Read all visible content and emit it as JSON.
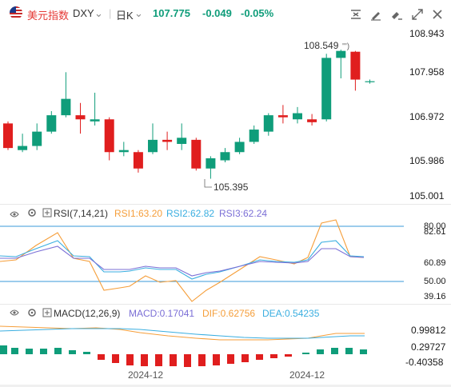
{
  "header": {
    "title": "美元指数",
    "symbol": "DXY",
    "period": "日K",
    "price": "107.775",
    "change": "-0.049",
    "change_pct": "-0.05%"
  },
  "colors": {
    "up": "#0f9d7a",
    "down": "#e01e1e",
    "rsi1": "#f59e3a",
    "rsi2": "#3aaee0",
    "rsi3": "#7b6fd6",
    "dif": "#f59e3a",
    "dea": "#3aaee0",
    "ref_line": "#3a9ad9"
  },
  "price_axis": [
    "108.943",
    "107.958",
    "106.972",
    "105.986",
    "105.001"
  ],
  "annotations": {
    "high": "108.549",
    "low": "105.395"
  },
  "rsi": {
    "title": "RSI(7,14,21)",
    "rsi1": "RSI1:63.20",
    "rsi2": "RSI2:62.82",
    "rsi3": "RSI3:62.24",
    "axis": [
      "80.00",
      "82.61",
      "60.89",
      "50.00",
      "39.16"
    ]
  },
  "macd": {
    "title": "MACD(12,26,9)",
    "macd": "MACD:0.17041",
    "dif": "DIF:0.62756",
    "dea": "DEA:0.54235",
    "axis": [
      "0.99812",
      "0.29727",
      "-0.40358"
    ]
  },
  "x_labels": [
    "2024-12",
    "2024-12"
  ],
  "icons": [
    "expand-icon",
    "draw-icon",
    "edit-icon",
    "fullscreen-icon",
    "close-icon",
    "eye-icon",
    "settings-icon",
    "add-indicator-icon"
  ],
  "chart_data": {
    "type": "candlestick",
    "ylim": [
      105.001,
      108.943
    ],
    "candles": [
      {
        "o": 106.75,
        "c": 106.15,
        "h": 106.8,
        "l": 106.1
      },
      {
        "o": 106.1,
        "c": 106.2,
        "h": 106.5,
        "l": 106.05
      },
      {
        "o": 106.2,
        "c": 106.55,
        "h": 106.75,
        "l": 106.1
      },
      {
        "o": 106.55,
        "c": 106.95,
        "h": 107.05,
        "l": 106.5
      },
      {
        "o": 106.95,
        "c": 107.35,
        "h": 108.0,
        "l": 106.9
      },
      {
        "o": 106.95,
        "c": 106.85,
        "h": 107.25,
        "l": 106.5
      },
      {
        "o": 106.8,
        "c": 106.85,
        "h": 107.5,
        "l": 106.7
      },
      {
        "o": 106.85,
        "c": 106.05,
        "h": 106.9,
        "l": 105.85
      },
      {
        "o": 106.05,
        "c": 106.1,
        "h": 106.3,
        "l": 105.95
      },
      {
        "o": 106.05,
        "c": 105.65,
        "h": 106.1,
        "l": 105.55
      },
      {
        "o": 106.05,
        "c": 106.35,
        "h": 106.75,
        "l": 106.0
      },
      {
        "o": 106.35,
        "c": 106.3,
        "h": 106.55,
        "l": 106.1
      },
      {
        "o": 106.25,
        "c": 106.4,
        "h": 106.75,
        "l": 106.1
      },
      {
        "o": 106.35,
        "c": 105.65,
        "h": 106.4,
        "l": 105.6
      },
      {
        "o": 105.65,
        "c": 105.9,
        "h": 105.95,
        "l": 105.4
      },
      {
        "o": 105.85,
        "c": 106.05,
        "h": 106.15,
        "l": 105.8
      },
      {
        "o": 106.05,
        "c": 106.3,
        "h": 106.4,
        "l": 106.0
      },
      {
        "o": 106.3,
        "c": 106.6,
        "h": 106.7,
        "l": 106.25
      },
      {
        "o": 106.55,
        "c": 106.95,
        "h": 107.0,
        "l": 106.45
      },
      {
        "o": 106.95,
        "c": 106.9,
        "h": 107.2,
        "l": 106.75
      },
      {
        "o": 106.85,
        "c": 107.0,
        "h": 107.15,
        "l": 106.75
      },
      {
        "o": 106.85,
        "c": 106.78,
        "h": 106.98,
        "l": 106.7
      },
      {
        "o": 106.85,
        "c": 108.35,
        "h": 108.45,
        "l": 106.8
      },
      {
        "o": 108.35,
        "c": 108.52,
        "h": 108.55,
        "l": 107.85
      },
      {
        "o": 108.5,
        "c": 107.82,
        "h": 108.52,
        "l": 107.55
      },
      {
        "o": 107.78,
        "c": 107.78,
        "h": 107.82,
        "l": 107.72
      }
    ]
  }
}
